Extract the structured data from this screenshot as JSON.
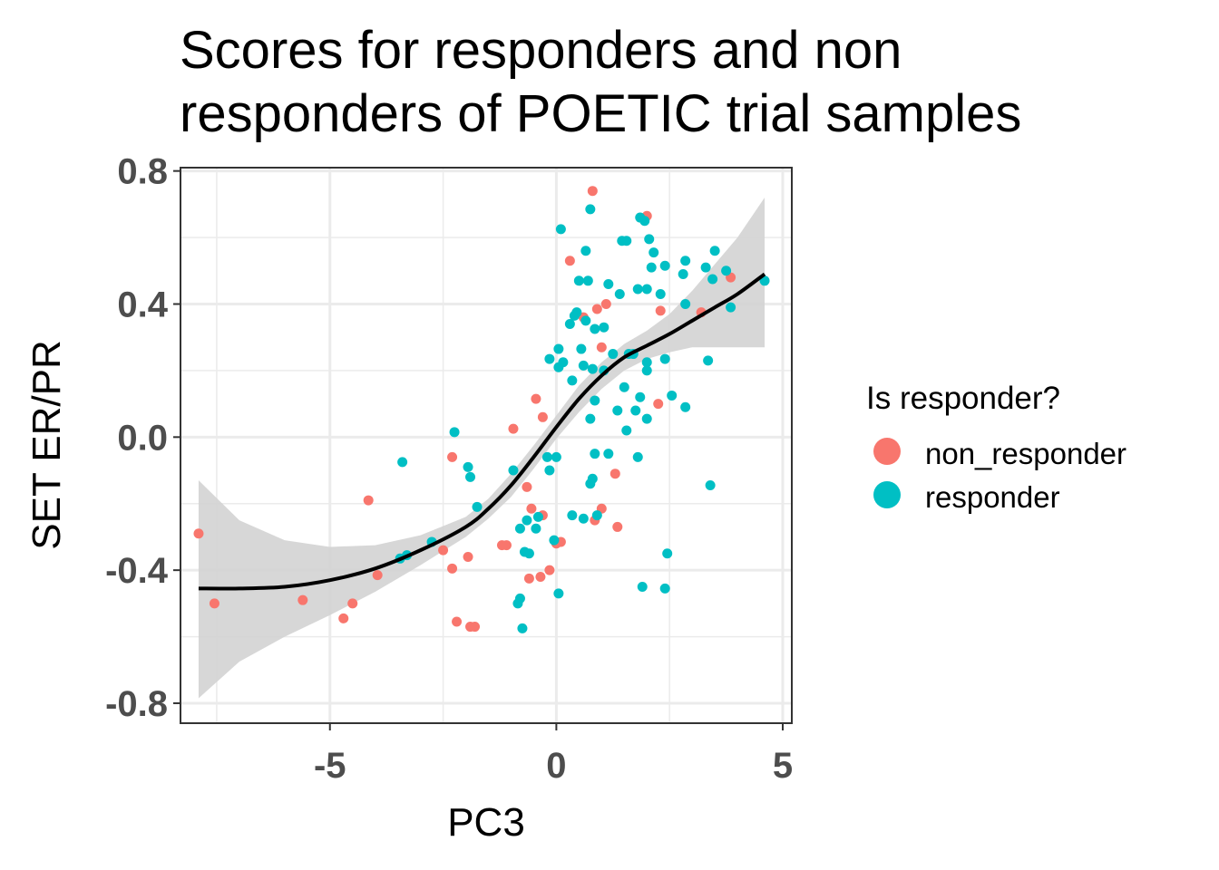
{
  "chart_data": {
    "type": "scatter",
    "title_lines": [
      "Scores for responders and non",
      "responders of POETIC trial samples"
    ],
    "xlabel": "PC3",
    "ylabel": "SET ER/PR",
    "xlim": [
      -8.3,
      5.2
    ],
    "ylim": [
      -0.86,
      0.81
    ],
    "xticks": [
      -5,
      0,
      5
    ],
    "xtick_labels": [
      "-5",
      "0",
      "5"
    ],
    "yticks": [
      -0.8,
      -0.4,
      0.0,
      0.4,
      0.8
    ],
    "ytick_labels": [
      "-0.8",
      "-0.4",
      "0.0",
      "0.4",
      "0.8"
    ],
    "grid": true,
    "legend": {
      "title": "Is responder?",
      "position": "right",
      "entries": [
        {
          "label": "non_responder",
          "color": "#F8766D"
        },
        {
          "label": "responder",
          "color": "#00BFC4"
        }
      ]
    },
    "series": [
      {
        "name": "non_responder",
        "color": "#F8766D",
        "points": [
          [
            -7.9,
            -0.29
          ],
          [
            -7.55,
            -0.5
          ],
          [
            -5.6,
            -0.49
          ],
          [
            -4.7,
            -0.545
          ],
          [
            -4.5,
            -0.5
          ],
          [
            -4.15,
            -0.19
          ],
          [
            -3.95,
            -0.415
          ],
          [
            -2.5,
            -0.34
          ],
          [
            -2.3,
            -0.395
          ],
          [
            -2.3,
            -0.06
          ],
          [
            -2.2,
            -0.555
          ],
          [
            -1.95,
            -0.36
          ],
          [
            -1.9,
            -0.57
          ],
          [
            -1.8,
            -0.57
          ],
          [
            -1.2,
            -0.325
          ],
          [
            -1.1,
            -0.325
          ],
          [
            -0.95,
            0.025
          ],
          [
            -0.65,
            -0.15
          ],
          [
            -0.6,
            -0.425
          ],
          [
            -0.55,
            -0.215
          ],
          [
            -0.45,
            0.115
          ],
          [
            -0.35,
            -0.42
          ],
          [
            -0.3,
            0.06
          ],
          [
            -0.3,
            -0.235
          ],
          [
            -0.15,
            -0.4
          ],
          [
            0.0,
            -0.32
          ],
          [
            0.1,
            -0.315
          ],
          [
            0.3,
            0.53
          ],
          [
            0.6,
            0.36
          ],
          [
            0.8,
            0.74
          ],
          [
            0.85,
            -0.25
          ],
          [
            0.9,
            0.385
          ],
          [
            1.0,
            -0.215
          ],
          [
            1.0,
            0.27
          ],
          [
            1.1,
            0.4
          ],
          [
            1.3,
            -0.11
          ],
          [
            1.35,
            -0.27
          ],
          [
            2.0,
            0.665
          ],
          [
            2.25,
            0.1
          ],
          [
            2.3,
            0.38
          ],
          [
            3.2,
            0.375
          ],
          [
            3.85,
            0.48
          ]
        ]
      },
      {
        "name": "responder",
        "color": "#00BFC4",
        "points": [
          [
            -3.45,
            -0.365
          ],
          [
            -3.4,
            -0.075
          ],
          [
            -3.3,
            -0.355
          ],
          [
            -2.75,
            -0.315
          ],
          [
            -2.25,
            0.015
          ],
          [
            -1.95,
            -0.09
          ],
          [
            -1.9,
            -0.12
          ],
          [
            -1.75,
            -0.21
          ],
          [
            -0.95,
            -0.1
          ],
          [
            -0.85,
            -0.5
          ],
          [
            -0.8,
            -0.485
          ],
          [
            -0.8,
            -0.275
          ],
          [
            -0.75,
            -0.575
          ],
          [
            -0.7,
            -0.345
          ],
          [
            -0.65,
            -0.25
          ],
          [
            -0.6,
            -0.35
          ],
          [
            -0.45,
            -0.275
          ],
          [
            -0.4,
            -0.24
          ],
          [
            -0.2,
            -0.06
          ],
          [
            -0.15,
            0.235
          ],
          [
            -0.15,
            -0.1
          ],
          [
            -0.05,
            -0.31
          ],
          [
            0.0,
            -0.06
          ],
          [
            0.05,
            0.21
          ],
          [
            0.05,
            0.265
          ],
          [
            0.05,
            -0.47
          ],
          [
            0.1,
            0.625
          ],
          [
            0.15,
            0.225
          ],
          [
            0.3,
            0.34
          ],
          [
            0.35,
            0.17
          ],
          [
            0.35,
            -0.235
          ],
          [
            0.4,
            0.365
          ],
          [
            0.45,
            0.375
          ],
          [
            0.5,
            0.47
          ],
          [
            0.55,
            0.265
          ],
          [
            0.6,
            0.215
          ],
          [
            0.6,
            -0.245
          ],
          [
            0.65,
            0.56
          ],
          [
            0.65,
            0.35
          ],
          [
            0.7,
            0.47
          ],
          [
            0.75,
            0.685
          ],
          [
            0.75,
            0.055
          ],
          [
            0.75,
            -0.14
          ],
          [
            0.8,
            0.205
          ],
          [
            0.8,
            -0.125
          ],
          [
            0.85,
            0.325
          ],
          [
            0.85,
            0.11
          ],
          [
            0.85,
            -0.05
          ],
          [
            0.9,
            -0.235
          ],
          [
            1.05,
            0.33
          ],
          [
            1.05,
            0.2
          ],
          [
            1.15,
            0.46
          ],
          [
            1.15,
            -0.05
          ],
          [
            1.25,
            0.25
          ],
          [
            1.35,
            0.08
          ],
          [
            1.4,
            0.43
          ],
          [
            1.45,
            0.59
          ],
          [
            1.5,
            0.15
          ],
          [
            1.55,
            0.02
          ],
          [
            1.55,
            0.59
          ],
          [
            1.6,
            0.25
          ],
          [
            1.7,
            0.25
          ],
          [
            1.75,
            0.08
          ],
          [
            1.8,
            0.445
          ],
          [
            1.8,
            -0.06
          ],
          [
            1.85,
            0.12
          ],
          [
            1.85,
            0.66
          ],
          [
            1.9,
            -0.45
          ],
          [
            1.95,
            0.65
          ],
          [
            2.0,
            0.445
          ],
          [
            2.0,
            0.225
          ],
          [
            2.0,
            0.2
          ],
          [
            2.0,
            0.055
          ],
          [
            2.05,
            0.595
          ],
          [
            2.1,
            0.51
          ],
          [
            2.15,
            0.555
          ],
          [
            2.3,
            0.43
          ],
          [
            2.4,
            0.515
          ],
          [
            2.4,
            0.235
          ],
          [
            2.4,
            -0.455
          ],
          [
            2.45,
            -0.35
          ],
          [
            2.55,
            0.125
          ],
          [
            2.8,
            0.49
          ],
          [
            2.85,
            0.53
          ],
          [
            2.85,
            0.4
          ],
          [
            2.85,
            0.09
          ],
          [
            3.3,
            0.51
          ],
          [
            3.35,
            0.23
          ],
          [
            3.4,
            -0.145
          ],
          [
            3.45,
            0.475
          ],
          [
            3.5,
            0.56
          ],
          [
            3.75,
            0.5
          ],
          [
            3.85,
            0.39
          ],
          [
            4.6,
            0.47
          ]
        ]
      }
    ],
    "smooth": {
      "color": "#000000",
      "ribbon_color": "#d3d3d3",
      "x": [
        -7.9,
        -7.0,
        -6.0,
        -5.0,
        -4.0,
        -3.0,
        -2.0,
        -1.5,
        -1.0,
        -0.5,
        0.0,
        0.5,
        1.0,
        1.5,
        2.0,
        2.5,
        3.0,
        3.5,
        4.0,
        4.6
      ],
      "y": [
        -0.455,
        -0.455,
        -0.45,
        -0.43,
        -0.395,
        -0.34,
        -0.27,
        -0.215,
        -0.145,
        -0.06,
        0.03,
        0.115,
        0.185,
        0.24,
        0.275,
        0.31,
        0.35,
        0.39,
        0.43,
        0.49
      ],
      "lower": [
        -0.785,
        -0.675,
        -0.6,
        -0.535,
        -0.465,
        -0.385,
        -0.3,
        -0.245,
        -0.18,
        -0.095,
        -0.005,
        0.075,
        0.145,
        0.2,
        0.235,
        0.255,
        0.27,
        0.27,
        0.27,
        0.27
      ],
      "upper": [
        -0.13,
        -0.25,
        -0.31,
        -0.33,
        -0.325,
        -0.295,
        -0.24,
        -0.185,
        -0.11,
        -0.025,
        0.065,
        0.155,
        0.225,
        0.28,
        0.32,
        0.37,
        0.44,
        0.52,
        0.6,
        0.72
      ]
    }
  }
}
